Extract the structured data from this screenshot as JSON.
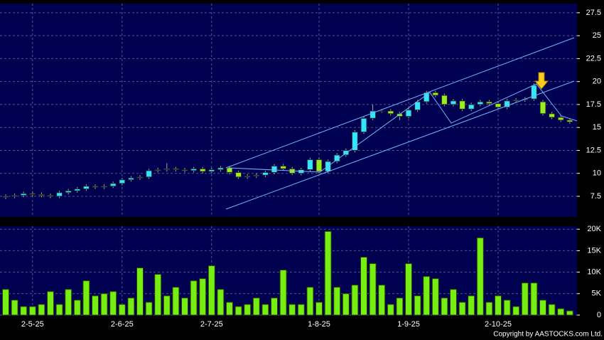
{
  "chart_data": [
    {
      "type": "candlestick",
      "up_color": "#33e6ff",
      "down_color": "#99ee22",
      "open": [
        7.4,
        7.5,
        7.6,
        7.8,
        7.7,
        7.6,
        7.5,
        7.9,
        8.1,
        8.3,
        8.6,
        8.5,
        8.6,
        8.9,
        9.3,
        9.5,
        9.6,
        10.3,
        10.4,
        10.5,
        10.4,
        10.3,
        10.5,
        10.2,
        10.4,
        10.6,
        10.1,
        9.6,
        9.7,
        9.8,
        10.1,
        10.8,
        10.5,
        10.0,
        10.4,
        11.5,
        10.2,
        11.3,
        12.0,
        12.5,
        14.5,
        16.0,
        16.8,
        16.8,
        16.5,
        16.2,
        16.9,
        17.8,
        18.8,
        18.5,
        17.5,
        17.9,
        17.0,
        17.5,
        17.8,
        17.6,
        17.2,
        17.9,
        18.0,
        18.1,
        17.8,
        16.5,
        16.1,
        15.8
      ],
      "high": [
        7.7,
        7.8,
        8.0,
        8.0,
        7.9,
        7.8,
        8.1,
        8.3,
        8.5,
        8.8,
        8.8,
        8.8,
        9.1,
        9.5,
        9.7,
        9.8,
        10.5,
        10.6,
        11.1,
        10.7,
        10.6,
        10.7,
        10.7,
        10.6,
        10.8,
        10.8,
        10.3,
        9.9,
        10.0,
        10.3,
        11.0,
        11.0,
        10.7,
        10.6,
        11.7,
        11.7,
        11.5,
        12.2,
        12.7,
        14.7,
        16.2,
        17.5,
        17.0,
        17.0,
        16.7,
        17.1,
        18.0,
        19.0,
        19.0,
        18.7,
        18.1,
        18.1,
        17.7,
        18.0,
        18.0,
        17.8,
        18.1,
        18.2,
        18.3,
        19.8,
        18.0,
        16.7,
        16.3,
        16.0
      ],
      "low": [
        7.2,
        7.3,
        7.4,
        7.5,
        7.4,
        7.3,
        7.3,
        7.7,
        7.9,
        8.1,
        8.3,
        8.3,
        8.4,
        8.7,
        9.1,
        9.3,
        9.4,
        10.1,
        10.2,
        10.2,
        10.1,
        10.1,
        10.0,
        10.0,
        10.2,
        9.9,
        9.4,
        9.4,
        9.5,
        9.6,
        9.9,
        10.3,
        9.8,
        9.8,
        10.2,
        10.0,
        10.0,
        11.1,
        11.8,
        12.3,
        14.3,
        15.8,
        16.6,
        16.3,
        15.8,
        16.0,
        16.7,
        17.6,
        18.3,
        17.3,
        17.3,
        16.8,
        16.8,
        17.3,
        17.4,
        17.0,
        17.0,
        17.7,
        17.8,
        17.9,
        16.3,
        15.9,
        15.6,
        15.4
      ],
      "close": [
        7.5,
        7.6,
        7.8,
        7.7,
        7.6,
        7.5,
        7.9,
        8.1,
        8.3,
        8.6,
        8.5,
        8.6,
        8.9,
        9.3,
        9.5,
        9.6,
        10.3,
        10.4,
        10.5,
        10.4,
        10.3,
        10.5,
        10.2,
        10.4,
        10.6,
        10.1,
        9.6,
        9.7,
        9.8,
        10.1,
        10.8,
        10.5,
        10.0,
        10.4,
        11.5,
        10.2,
        11.3,
        12.0,
        12.5,
        14.5,
        16.0,
        16.8,
        16.8,
        16.5,
        16.2,
        16.9,
        17.8,
        18.8,
        18.5,
        17.5,
        17.9,
        17.0,
        17.5,
        17.8,
        17.6,
        17.2,
        17.9,
        18.0,
        18.1,
        19.6,
        16.5,
        16.1,
        15.8,
        15.6
      ],
      "ylim": [
        5.25,
        28.5
      ],
      "yticks": [
        7.5,
        10,
        12.5,
        15,
        17.5,
        20,
        22.5,
        25,
        27.5
      ],
      "grid": true
    },
    {
      "type": "bar",
      "color": "#77ee11",
      "categories": [
        null,
        null,
        null,
        "2-5-25",
        null,
        null,
        null,
        null,
        null,
        null,
        null,
        null,
        null,
        "2-6-25",
        null,
        null,
        null,
        null,
        null,
        null,
        null,
        null,
        null,
        "2-7-25",
        null,
        null,
        null,
        null,
        null,
        null,
        null,
        null,
        null,
        null,
        null,
        "1-8-25",
        null,
        null,
        null,
        null,
        null,
        null,
        null,
        null,
        null,
        "1-9-25",
        null,
        null,
        null,
        null,
        null,
        null,
        null,
        null,
        null,
        "2-10-25",
        null,
        null,
        null,
        null,
        null,
        null,
        null,
        null
      ],
      "values": [
        6000,
        3500,
        2000,
        2000,
        2500,
        5500,
        2500,
        6000,
        3500,
        8000,
        4500,
        5000,
        5500,
        2500,
        4000,
        11000,
        3000,
        9500,
        4500,
        6500,
        4000,
        8000,
        8500,
        11500,
        6000,
        3000,
        2000,
        2500,
        4000,
        2500,
        4000,
        10500,
        2500,
        2500,
        6500,
        3000,
        19500,
        6500,
        5000,
        7000,
        13500,
        12000,
        7000,
        2500,
        4000,
        12000,
        4500,
        9000,
        8500,
        4000,
        6000,
        3000,
        4500,
        18000,
        3000,
        4500,
        3500,
        2000,
        7500,
        7500,
        3500,
        2500,
        1500,
        1000
      ],
      "ylim": [
        0,
        20700
      ],
      "yticks": [
        0,
        {
          "value": 5000,
          "label": "5K"
        },
        {
          "value": 10000,
          "label": "10K"
        },
        {
          "value": 15000,
          "label": "15K"
        },
        {
          "value": 20000,
          "label": "20K"
        }
      ],
      "grid": true,
      "source": "Copyright by AASTOCKS.com Ltd."
    }
  ]
}
